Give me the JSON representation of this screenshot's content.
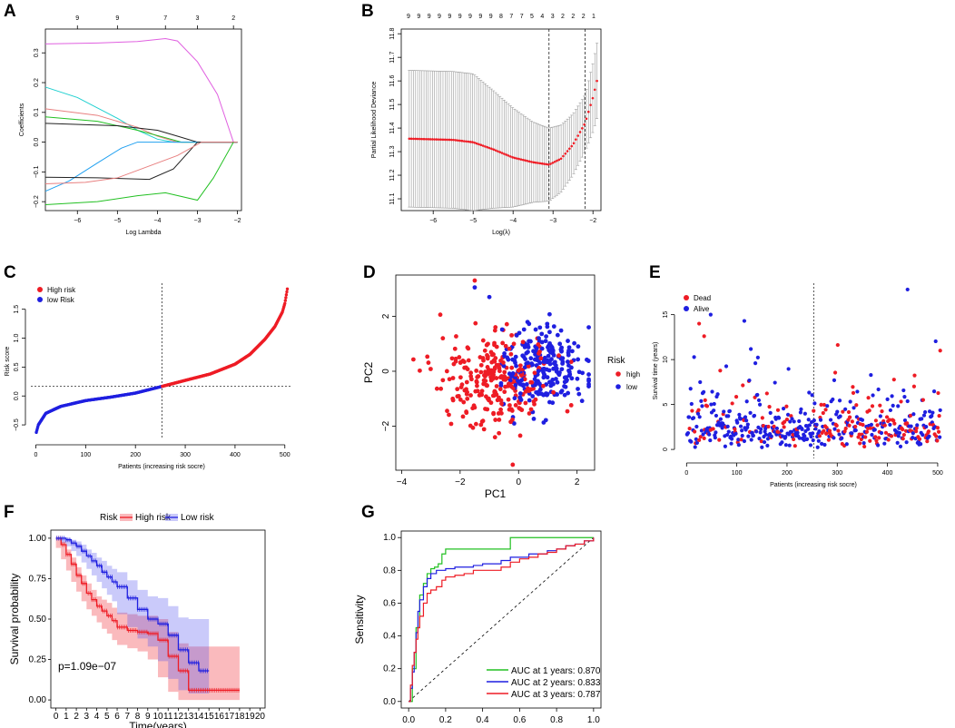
{
  "panel_labels": {
    "A": "A",
    "B": "B",
    "C": "C",
    "D": "D",
    "E": "E",
    "F": "F",
    "G": "G"
  },
  "colors": {
    "red": "#ee1c25",
    "blue": "#1f1fe0",
    "pink": "#e060e0",
    "cyan": "#20d0d0",
    "green": "#22c022",
    "black": "#222222",
    "gray": "#9a9a9a",
    "salmon": "#e88080"
  },
  "chart_data": [
    {
      "id": "A",
      "type": "line",
      "title": "",
      "xlabel": "Log Lambda",
      "ylabel": "Coefficients",
      "xlim": [
        -6.8,
        -1.9
      ],
      "ylim": [
        -0.23,
        0.38
      ],
      "xticks": [
        -6,
        -5,
        -4,
        -3,
        -2
      ],
      "xtick_labels": [
        "−6",
        "−5",
        "−4",
        "−3",
        "−2"
      ],
      "yticks": [
        -0.2,
        -0.1,
        0.0,
        0.1,
        0.2,
        0.3
      ],
      "ytick_labels": [
        "−0.2",
        "−0.1",
        "0.0",
        "0.1",
        "0.2",
        "0.3"
      ],
      "top_ticks": [
        -6,
        -5,
        -3.8,
        -3,
        -2.1
      ],
      "top_labels": [
        "9",
        "9",
        "7",
        "3",
        "2"
      ],
      "series": [
        {
          "name": "magenta",
          "x": [
            -6.8,
            -5.5,
            -4.5,
            -3.8,
            -3.5,
            -3.0,
            -2.5,
            -2.1
          ],
          "y": [
            0.33,
            0.333,
            0.338,
            0.348,
            0.34,
            0.27,
            0.16,
            0.0
          ]
        },
        {
          "name": "cyan",
          "x": [
            -6.8,
            -6.0,
            -5.0,
            -4.5,
            -4.0,
            -3.6
          ],
          "y": [
            0.185,
            0.15,
            0.08,
            0.04,
            0.01,
            0.0
          ]
        },
        {
          "name": "salmon",
          "x": [
            -6.8,
            -5.5,
            -4.5,
            -4.0,
            -3.5
          ],
          "y": [
            0.112,
            0.09,
            0.05,
            0.02,
            0.0
          ]
        },
        {
          "name": "green-upper",
          "x": [
            -6.8,
            -5.5,
            -4.5,
            -3.8,
            -3.4
          ],
          "y": [
            0.085,
            0.07,
            0.04,
            0.015,
            0.0
          ]
        },
        {
          "name": "black-upper",
          "x": [
            -6.8,
            -5.0,
            -4.0,
            -3.5,
            -3.0
          ],
          "y": [
            0.063,
            0.055,
            0.04,
            0.02,
            0.0
          ]
        },
        {
          "name": "blue",
          "x": [
            -6.8,
            -6.2,
            -5.5,
            -4.9,
            -4.5
          ],
          "y": [
            -0.165,
            -0.13,
            -0.07,
            -0.02,
            0.0
          ]
        },
        {
          "name": "black-lower",
          "x": [
            -6.8,
            -5.5,
            -4.2,
            -3.6,
            -3.2,
            -3.0
          ],
          "y": [
            -0.118,
            -0.12,
            -0.125,
            -0.09,
            -0.03,
            0.0
          ]
        },
        {
          "name": "pink-lower",
          "x": [
            -6.8,
            -5.8,
            -5.0,
            -4.2,
            -3.5,
            -2.9
          ],
          "y": [
            -0.14,
            -0.135,
            -0.12,
            -0.08,
            -0.045,
            0.0
          ]
        },
        {
          "name": "green-lower",
          "x": [
            -6.8,
            -5.5,
            -4.5,
            -3.8,
            -3.0,
            -2.6,
            -2.1
          ],
          "y": [
            -0.21,
            -0.2,
            -0.18,
            -0.17,
            -0.195,
            -0.12,
            0.0
          ]
        }
      ]
    },
    {
      "id": "B",
      "type": "scatter",
      "title": "",
      "xlabel": "Log(λ)",
      "ylabel": "Partial Likelihood Deviance",
      "xlim": [
        -6.8,
        -1.8
      ],
      "ylim": [
        11.05,
        11.82
      ],
      "xticks": [
        -6,
        -5,
        -4,
        -3,
        -2
      ],
      "xtick_labels": [
        "−6",
        "−5",
        "−4",
        "−3",
        "−2"
      ],
      "yticks": [
        11.1,
        11.2,
        11.3,
        11.4,
        11.5,
        11.6,
        11.7,
        11.8
      ],
      "ytick_labels": [
        "11.1",
        "11.2",
        "11.3",
        "11.4",
        "11.5",
        "11.6",
        "11.7",
        "11.8"
      ],
      "top_labels": [
        "9",
        "9",
        "9",
        "9",
        "9",
        "9",
        "9",
        "9",
        "9",
        "8",
        "7",
        "7",
        "5",
        "4",
        "3",
        "2",
        "2",
        "2",
        "1"
      ],
      "vlines": [
        -3.1,
        -2.2
      ],
      "x_start": -6.6,
      "x_end": -1.9,
      "n_points": 90,
      "mean_curve": {
        "x": [
          -6.6,
          -5.5,
          -5.0,
          -4.5,
          -4.0,
          -3.5,
          -3.1,
          -2.8,
          -2.5,
          -2.2,
          -2.0,
          -1.9
        ],
        "y": [
          11.355,
          11.35,
          11.34,
          11.31,
          11.275,
          11.255,
          11.245,
          11.27,
          11.33,
          11.42,
          11.53,
          11.6
        ]
      },
      "error_half": {
        "x": [
          -6.6,
          -5.0,
          -4.5,
          -3.5,
          -3.1,
          -2.5,
          -2.2,
          -1.9
        ],
        "y": [
          0.29,
          0.29,
          0.25,
          0.17,
          0.155,
          0.13,
          0.12,
          0.16
        ]
      }
    },
    {
      "id": "C",
      "type": "scatter",
      "title": "",
      "xlabel": "Patients (increasing risk socre)",
      "ylabel": "Risk score",
      "xlim": [
        -10,
        515
      ],
      "ylim": [
        -0.75,
        1.95
      ],
      "xticks": [
        0,
        100,
        200,
        300,
        400,
        500
      ],
      "xtick_labels": [
        "0",
        "100",
        "200",
        "300",
        "400",
        "500"
      ],
      "yticks": [
        -0.5,
        0.0,
        0.5,
        1.0,
        1.5
      ],
      "ytick_labels": [
        "−0.5",
        "0.0",
        "0.5",
        "1.0",
        "1.5"
      ],
      "n": 505,
      "cutoff_index": 253,
      "cutoff_value": 0.165,
      "legend": [
        "High risk",
        "low Risk"
      ],
      "curve": {
        "x": [
          1,
          5,
          20,
          50,
          100,
          150,
          200,
          253,
          300,
          350,
          400,
          430,
          460,
          480,
          495,
          500,
          505
        ],
        "y": [
          -0.63,
          -0.5,
          -0.3,
          -0.18,
          -0.08,
          -0.02,
          0.05,
          0.165,
          0.27,
          0.38,
          0.55,
          0.72,
          0.98,
          1.2,
          1.45,
          1.6,
          1.85
        ]
      }
    },
    {
      "id": "D",
      "type": "scatter",
      "title": "",
      "xlabel": "PC1",
      "ylabel": "PC2",
      "xlim": [
        -4.2,
        2.6
      ],
      "ylim": [
        -3.6,
        3.5
      ],
      "xticks": [
        -4,
        -2,
        0,
        2
      ],
      "xtick_labels": [
        "−4",
        "−2",
        "0",
        "2"
      ],
      "yticks": [
        -2,
        0,
        2
      ],
      "ytick_labels": [
        "−2",
        "0",
        "2"
      ],
      "legend_title": "Risk",
      "legend": [
        "high",
        "low"
      ],
      "groups": [
        {
          "name": "high",
          "n": 260,
          "center": [
            -0.9,
            -0.4
          ],
          "spread": [
            1.0,
            0.8
          ],
          "x_range": [
            -3.9,
            1.8
          ],
          "y_range": [
            -2.4,
            3.3
          ]
        },
        {
          "name": "low",
          "n": 250,
          "center": [
            0.9,
            0.15
          ],
          "spread": [
            0.7,
            0.75
          ],
          "x_range": [
            -0.6,
            2.4
          ],
          "y_range": [
            -1.9,
            2.1
          ]
        }
      ],
      "outliers": [
        {
          "name": "high",
          "x": -0.2,
          "y": -3.4
        },
        {
          "name": "high",
          "x": -1.5,
          "y": 3.3
        },
        {
          "name": "low",
          "x": -1.0,
          "y": 2.7
        },
        {
          "name": "low",
          "x": -1.5,
          "y": 3.05
        }
      ]
    },
    {
      "id": "E",
      "type": "scatter",
      "title": "",
      "xlabel": "Patients (increasing risk socre)",
      "ylabel": "Survival time (years)",
      "xlim": [
        -15,
        520
      ],
      "ylim": [
        -1.0,
        18.5
      ],
      "xticks": [
        0,
        100,
        200,
        300,
        400,
        500
      ],
      "xtick_labels": [
        "0",
        "100",
        "200",
        "300",
        "400",
        "500"
      ],
      "yticks": [
        0,
        5,
        10,
        15
      ],
      "ytick_labels": [
        "0",
        "5",
        "10",
        "15"
      ],
      "legend": [
        "Dead",
        "Alive"
      ],
      "n": 505,
      "cutoff_index": 253,
      "dead_probability": [
        0.2,
        0.45
      ],
      "notable_points": [
        {
          "status": "Dead",
          "x": 25,
          "y": 14.0
        },
        {
          "status": "Dead",
          "x": 35,
          "y": 12.6
        },
        {
          "status": "Alive",
          "x": 48,
          "y": 15.0
        },
        {
          "status": "Alive",
          "x": 115,
          "y": 14.3
        },
        {
          "status": "Alive",
          "x": 440,
          "y": 17.8
        },
        {
          "status": "Dead",
          "x": 505,
          "y": 11.0
        }
      ]
    },
    {
      "id": "F",
      "type": "line",
      "title": "",
      "xlabel": "Time(years)",
      "ylabel": "Survival probability",
      "xlim": [
        -0.5,
        20.5
      ],
      "ylim": [
        -0.05,
        1.05
      ],
      "xticks": [
        0,
        1,
        2,
        3,
        4,
        5,
        6,
        7,
        8,
        9,
        10,
        11,
        12,
        13,
        14,
        15,
        16,
        17,
        18,
        19,
        20
      ],
      "xtick_labels": [
        "0",
        "1",
        "2",
        "3",
        "4",
        "5",
        "6",
        "7",
        "8",
        "9",
        "10",
        "11",
        "12",
        "13",
        "14",
        "15",
        "16",
        "17",
        "18",
        "19",
        "20"
      ],
      "yticks": [
        0.0,
        0.25,
        0.5,
        0.75,
        1.0
      ],
      "ytick_labels": [
        "0.00",
        "0.25",
        "0.50",
        "0.75",
        "1.00"
      ],
      "legend_title": "Risk",
      "legend": [
        "High risk",
        "Low risk"
      ],
      "annotation": "p=1.09e−07",
      "series": [
        {
          "name": "High risk",
          "x": [
            0,
            0.5,
            1,
            1.5,
            2,
            2.5,
            3,
            3.5,
            4,
            4.5,
            5,
            5.5,
            6,
            7,
            8,
            9,
            10,
            11,
            12,
            13,
            14,
            15,
            16,
            17,
            18
          ],
          "y": [
            1.0,
            0.96,
            0.9,
            0.84,
            0.77,
            0.72,
            0.66,
            0.62,
            0.58,
            0.55,
            0.52,
            0.49,
            0.45,
            0.43,
            0.42,
            0.41,
            0.37,
            0.27,
            0.18,
            0.06,
            0.06,
            0.06,
            0.06,
            0.06,
            0.06
          ],
          "lower": [
            1.0,
            0.94,
            0.87,
            0.8,
            0.73,
            0.67,
            0.61,
            0.56,
            0.52,
            0.48,
            0.44,
            0.41,
            0.37,
            0.34,
            0.32,
            0.3,
            0.25,
            0.14,
            0.05,
            0.0,
            0.0,
            0.0,
            0.0,
            0.0,
            0.0
          ],
          "upper": [
            1.0,
            0.98,
            0.93,
            0.88,
            0.82,
            0.77,
            0.72,
            0.68,
            0.64,
            0.62,
            0.6,
            0.57,
            0.54,
            0.53,
            0.52,
            0.52,
            0.5,
            0.42,
            0.35,
            0.33,
            0.33,
            0.33,
            0.33,
            0.33,
            0.33
          ]
        },
        {
          "name": "Low risk",
          "x": [
            0,
            0.5,
            1,
            1.5,
            2,
            2.5,
            3,
            3.5,
            4,
            4.5,
            5,
            5.5,
            6,
            7,
            8,
            9,
            10,
            11,
            12,
            13,
            14,
            15
          ],
          "y": [
            1.0,
            1.0,
            0.99,
            0.97,
            0.95,
            0.92,
            0.89,
            0.86,
            0.83,
            0.79,
            0.76,
            0.73,
            0.7,
            0.63,
            0.56,
            0.5,
            0.47,
            0.4,
            0.31,
            0.23,
            0.18,
            0.18
          ],
          "lower": [
            1.0,
            0.99,
            0.97,
            0.95,
            0.92,
            0.89,
            0.85,
            0.81,
            0.77,
            0.73,
            0.69,
            0.65,
            0.61,
            0.53,
            0.45,
            0.38,
            0.33,
            0.24,
            0.13,
            0.06,
            0.04,
            0.04
          ],
          "upper": [
            1.0,
            1.0,
            1.0,
            0.99,
            0.98,
            0.96,
            0.93,
            0.91,
            0.88,
            0.86,
            0.83,
            0.81,
            0.79,
            0.74,
            0.68,
            0.64,
            0.63,
            0.58,
            0.51,
            0.5,
            0.5,
            0.5
          ]
        }
      ]
    },
    {
      "id": "G",
      "type": "line",
      "title": "",
      "xlabel": "",
      "ylabel": "Sensitivity",
      "xlim": [
        -0.04,
        1.04
      ],
      "ylim": [
        -0.04,
        1.04
      ],
      "xticks": [
        0,
        0.2,
        0.4,
        0.6,
        0.8,
        1.0
      ],
      "xtick_labels": [
        "0.0",
        "0.2",
        "0.4",
        "0.6",
        "0.8",
        "1.0"
      ],
      "yticks": [
        0,
        0.2,
        0.4,
        0.6,
        0.8,
        1.0
      ],
      "ytick_labels": [
        "0.0",
        "0.2",
        "0.4",
        "0.6",
        "0.8",
        "1.0"
      ],
      "legend": [
        "AUC at 1 years: 0.870",
        "AUC at 2 years: 0.833",
        "AUC at 3 years: 0.787"
      ],
      "series": [
        {
          "name": "AUC at 1 years: 0.870",
          "auc": 0.87,
          "x": [
            0,
            0.02,
            0.02,
            0.04,
            0.04,
            0.06,
            0.06,
            0.08,
            0.1,
            0.12,
            0.14,
            0.16,
            0.18,
            0.18,
            0.2,
            0.22,
            0.25,
            0.3,
            0.35,
            0.45,
            0.5,
            0.55,
            0.55,
            0.6,
            0.65,
            0.7,
            0.8,
            0.9,
            1.0
          ],
          "y": [
            0,
            0.1,
            0.2,
            0.35,
            0.45,
            0.55,
            0.65,
            0.72,
            0.78,
            0.81,
            0.82,
            0.84,
            0.86,
            0.9,
            0.93,
            0.93,
            0.93,
            0.93,
            0.93,
            0.93,
            0.93,
            0.93,
            1.0,
            1.0,
            1.0,
            1.0,
            1.0,
            1.0,
            1.0
          ]
        },
        {
          "name": "AUC at 2 years: 0.833",
          "auc": 0.833,
          "x": [
            0,
            0.01,
            0.02,
            0.03,
            0.04,
            0.05,
            0.06,
            0.08,
            0.1,
            0.12,
            0.15,
            0.2,
            0.25,
            0.3,
            0.35,
            0.4,
            0.45,
            0.5,
            0.55,
            0.6,
            0.65,
            0.7,
            0.75,
            0.8,
            0.85,
            0.9,
            0.95,
            1.0
          ],
          "y": [
            0,
            0.08,
            0.18,
            0.3,
            0.42,
            0.55,
            0.62,
            0.7,
            0.75,
            0.78,
            0.8,
            0.81,
            0.82,
            0.82,
            0.83,
            0.84,
            0.84,
            0.86,
            0.88,
            0.88,
            0.9,
            0.9,
            0.92,
            0.93,
            0.95,
            0.96,
            0.98,
            1.0
          ]
        },
        {
          "name": "AUC at 3 years: 0.787",
          "auc": 0.787,
          "x": [
            0,
            0.01,
            0.02,
            0.03,
            0.04,
            0.05,
            0.06,
            0.08,
            0.1,
            0.12,
            0.15,
            0.18,
            0.2,
            0.25,
            0.3,
            0.35,
            0.4,
            0.45,
            0.5,
            0.55,
            0.6,
            0.65,
            0.7,
            0.75,
            0.8,
            0.85,
            0.9,
            0.95,
            1.0
          ],
          "y": [
            0,
            0.1,
            0.22,
            0.3,
            0.38,
            0.45,
            0.52,
            0.6,
            0.66,
            0.68,
            0.7,
            0.74,
            0.76,
            0.77,
            0.78,
            0.8,
            0.8,
            0.8,
            0.82,
            0.85,
            0.87,
            0.88,
            0.9,
            0.91,
            0.93,
            0.95,
            0.96,
            0.98,
            1.0
          ]
        }
      ]
    }
  ]
}
